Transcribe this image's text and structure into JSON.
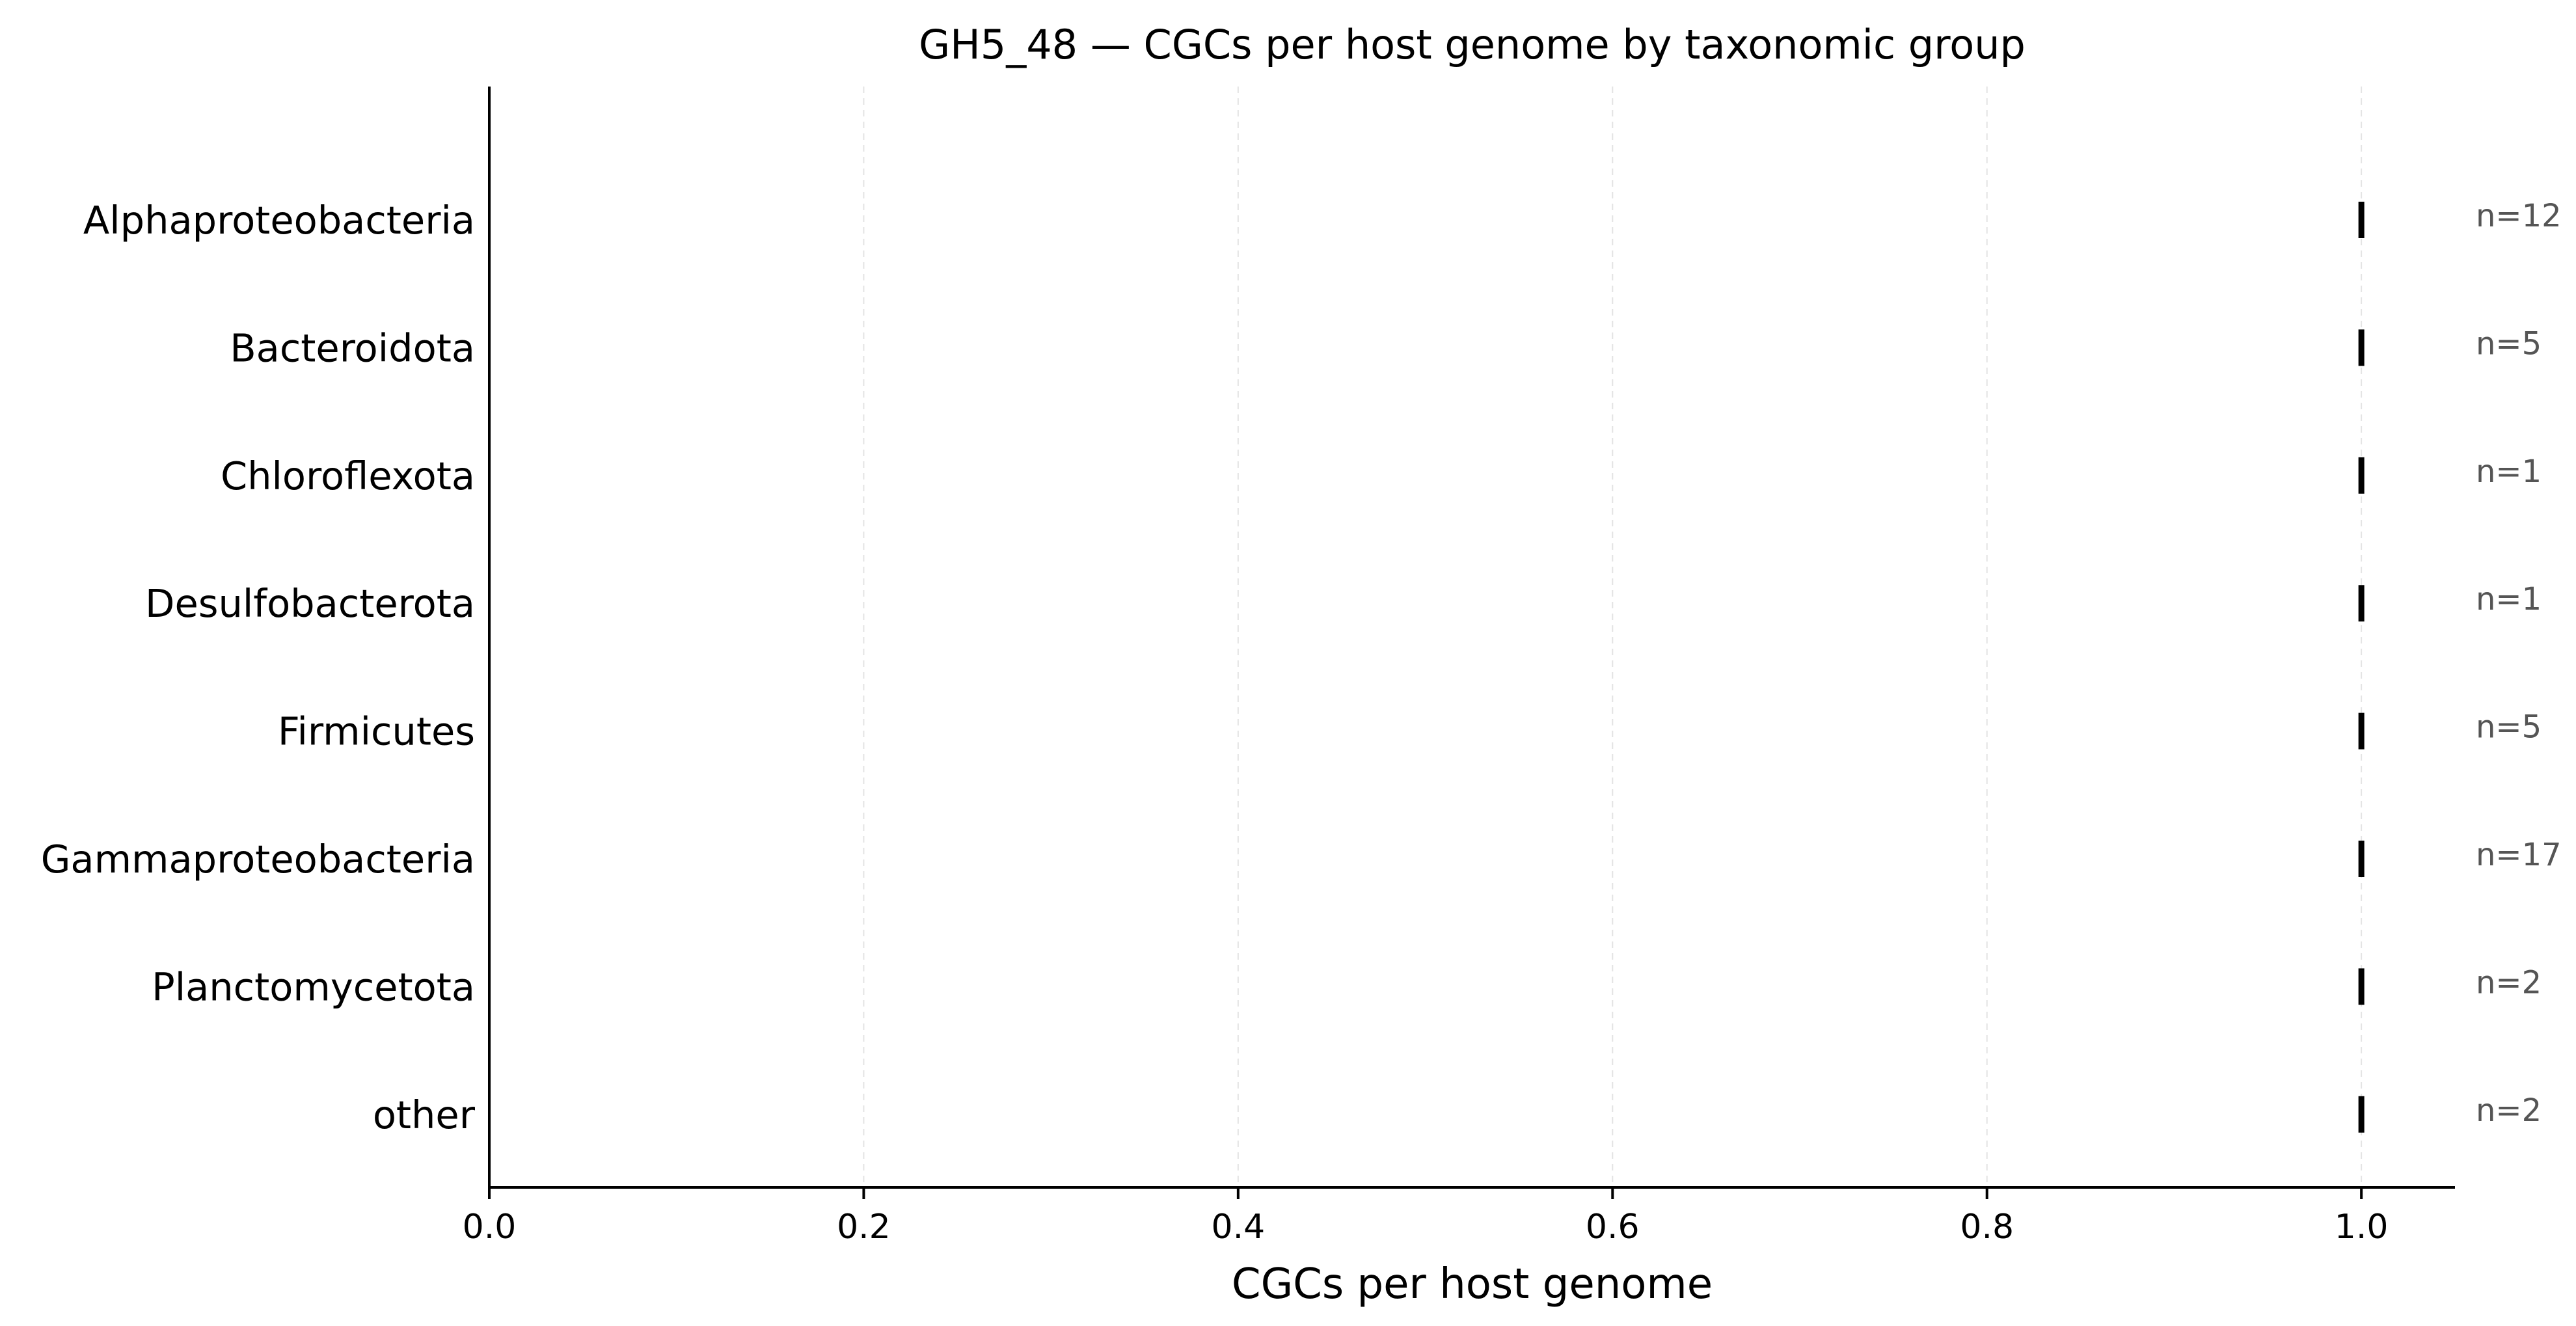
{
  "chart_data": {
    "type": "scatter",
    "title": "GH5_48 — CGCs per host genome by taxonomic group",
    "xlabel": "CGCs per host genome",
    "ylabel": "",
    "xlim": [
      0,
      1.05
    ],
    "xticks": [
      0.0,
      0.2,
      0.4,
      0.6,
      0.8,
      1.0
    ],
    "xtick_labels": [
      "0.0",
      "0.2",
      "0.4",
      "0.6",
      "0.8",
      "1.0"
    ],
    "grid": "x-dashed",
    "marker": "vertical-tick",
    "mark_color": "#000000",
    "count_color": "#555555",
    "categories": [
      "Alphaproteobacteria",
      "Bacteroidota",
      "Chloroflexota",
      "Desulfobacterota",
      "Firmicutes",
      "Gammaproteobacteria",
      "Planctomycetota",
      "other"
    ],
    "values": [
      1.0,
      1.0,
      1.0,
      1.0,
      1.0,
      1.0,
      1.0,
      1.0
    ],
    "count_labels": [
      "n=12",
      "n=5",
      "n=1",
      "n=1",
      "n=5",
      "n=17",
      "n=2",
      "n=2"
    ]
  }
}
